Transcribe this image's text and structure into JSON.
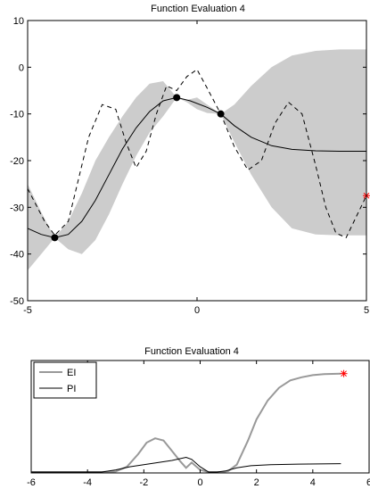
{
  "chart_data": [
    {
      "type": "line",
      "title": "Function Evaluation 4",
      "xlim": [
        -5,
        5
      ],
      "ylim": [
        -50,
        10
      ],
      "xticks": [
        -5,
        0,
        5
      ],
      "yticks": [
        -50,
        -40,
        -30,
        -20,
        -10,
        0,
        10
      ],
      "grid": false,
      "series": [
        {
          "role": "true-function-dashed",
          "x": [
            -5,
            -4.5,
            -4.2,
            -3.8,
            -3.2,
            -2.8,
            -2.4,
            -2.1,
            -1.8,
            -1.5,
            -1.2,
            -0.9,
            -0.6,
            -0.3,
            0,
            0.3,
            0.7,
            1.1,
            1.5,
            1.9,
            2.3,
            2.7,
            3.1,
            3.5,
            3.8,
            4.1,
            4.4,
            4.7,
            5
          ],
          "y": [
            -26,
            -33,
            -36,
            -33,
            -15,
            -8,
            -9,
            -16,
            -21.5,
            -18,
            -10,
            -4,
            -5,
            -2,
            -0.5,
            -4.5,
            -10,
            -17,
            -22,
            -20,
            -12,
            -7.5,
            -10,
            -21,
            -30,
            -35.5,
            -36.5,
            -32,
            -27.5
          ]
        },
        {
          "role": "posterior-mean",
          "x": [
            -5,
            -4.6,
            -4.2,
            -3.8,
            -3.4,
            -3,
            -2.6,
            -2.2,
            -1.8,
            -1.4,
            -1,
            -0.6,
            -0.2,
            0.3,
            0.7,
            1.1,
            1.6,
            2.2,
            2.8,
            3.5,
            4.2,
            5
          ],
          "y": [
            -34.5,
            -35.8,
            -36.5,
            -35.8,
            -33,
            -28.5,
            -23,
            -17.5,
            -13,
            -9.5,
            -7.2,
            -6.5,
            -7.2,
            -8.6,
            -10,
            -12.5,
            -15,
            -16.8,
            -17.6,
            -17.9,
            -18,
            -18
          ]
        },
        {
          "role": "confidence-band",
          "x": [
            -5,
            -4.6,
            -4.2,
            -3.8,
            -3.4,
            -3,
            -2.6,
            -2.2,
            -1.8,
            -1.4,
            -1,
            -0.6,
            -0.3,
            0,
            0.3,
            0.7,
            1.1,
            1.6,
            2.2,
            2.8,
            3.5,
            4.2,
            5
          ],
          "upper": [
            -25,
            -31,
            -36.5,
            -33,
            -27,
            -20,
            -15,
            -10.5,
            -6.5,
            -3.5,
            -3,
            -6.5,
            -7,
            -6.5,
            -8,
            -10,
            -8,
            -4,
            0,
            2.5,
            3.5,
            3.8,
            3.8
          ],
          "lower": [
            -43.5,
            -40,
            -36.5,
            -39,
            -40,
            -37,
            -31.5,
            -25,
            -19,
            -14,
            -10.5,
            -6.5,
            -7.5,
            -9,
            -9.8,
            -10,
            -16,
            -23,
            -30,
            -34.5,
            -35.8,
            -36,
            -36
          ]
        }
      ],
      "observations": {
        "x": [
          -4.2,
          -0.6,
          0.7
        ],
        "y": [
          -36.5,
          -6.5,
          -10
        ]
      },
      "next_point": {
        "x": 5,
        "y": -27.5
      },
      "colors": {
        "band": "#cccccc",
        "line": "#000000",
        "marker": "#000000",
        "next": "#ff0000"
      }
    },
    {
      "type": "line",
      "title": "Function Evaluation 4",
      "xlim": [
        -6,
        6
      ],
      "xticks": [
        -6,
        -4,
        -2,
        0,
        2,
        4,
        6
      ],
      "legend_position": "top-left",
      "grid": false,
      "series": [
        {
          "name": "EI",
          "color": "#999999",
          "x": [
            -6,
            -3.5,
            -3,
            -2.6,
            -2.2,
            -1.9,
            -1.6,
            -1.3,
            -1,
            -0.7,
            -0.5,
            -0.3,
            0,
            0.3,
            0.6,
            0.8,
            1,
            1.3,
            1.7,
            2,
            2.4,
            2.8,
            3.2,
            3.6,
            4,
            4.4,
            5
          ],
          "y": [
            0,
            0,
            0.005,
            0.05,
            0.17,
            0.28,
            0.32,
            0.3,
            0.2,
            0.1,
            0.04,
            0.09,
            0.02,
            0,
            0,
            0,
            0.01,
            0.07,
            0.3,
            0.5,
            0.68,
            0.8,
            0.87,
            0.9,
            0.92,
            0.93,
            0.935
          ]
        },
        {
          "name": "PI",
          "color": "#000000",
          "x": [
            -6,
            -3.5,
            -3,
            -2.5,
            -2,
            -1.5,
            -1,
            -0.5,
            -0.3,
            0,
            0.3,
            0.6,
            0.9,
            1.3,
            1.8,
            2.5,
            3.5,
            5
          ],
          "y": [
            0,
            0,
            0.02,
            0.05,
            0.07,
            0.09,
            0.11,
            0.14,
            0.12,
            0.05,
            0,
            0,
            0.01,
            0.04,
            0.06,
            0.07,
            0.075,
            0.08
          ]
        }
      ],
      "next_point": {
        "x": 5.1,
        "y": 0.935,
        "color": "#ff0000"
      }
    }
  ]
}
